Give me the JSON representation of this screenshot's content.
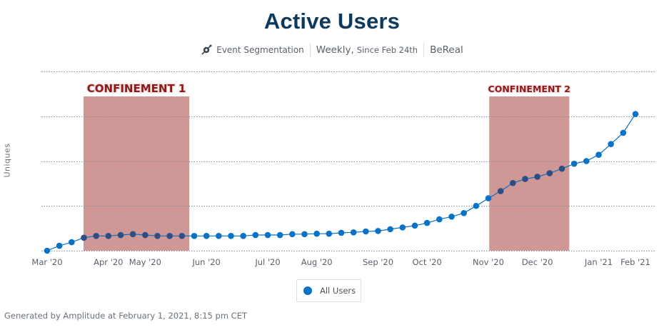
{
  "header": {
    "title": "Active Users",
    "chart_type_label": "Event Segmentation",
    "interval_label": "Weekly,",
    "range_label": "Since Feb 24th",
    "project_label": "BeReal"
  },
  "legend": {
    "items": [
      {
        "label": "All Users",
        "color": "#0a72c6"
      }
    ]
  },
  "footer": {
    "text": "Generated by Amplitude at February 1, 2021, 8:15 pm CET"
  },
  "colors": {
    "series": "#0a72c6",
    "series_in_band": "#2e4d85",
    "band": "#cf9795",
    "band_label": "#8a1a1a",
    "grid": "#8a8f96",
    "title": "#0d3a5c"
  },
  "chart_data": {
    "type": "line",
    "title": "Active Users",
    "xlabel": "",
    "ylabel": "Uniques",
    "y_unit_note": "No y-axis tick values shown; values are relative in gridline-interval units (4 intervals visible)",
    "ylim": [
      0,
      4
    ],
    "grid": true,
    "grid_y_values": [
      0,
      1,
      2,
      3,
      4
    ],
    "legend_position": "bottom-center",
    "x_tick_labels": [
      "Mar '20",
      "Apr '20",
      "May '20",
      "Jun '20",
      "Jul '20",
      "Aug '20",
      "Sep '20",
      "Oct '20",
      "Nov '20",
      "Dec '20",
      "Jan '21",
      "Feb '21"
    ],
    "x_tick_point_index": [
      0,
      5,
      8,
      13,
      18,
      22,
      27,
      31,
      36,
      40,
      45,
      48
    ],
    "series": [
      {
        "name": "All Users",
        "values": [
          0.0,
          0.11,
          0.19,
          0.29,
          0.33,
          0.33,
          0.35,
          0.37,
          0.35,
          0.33,
          0.33,
          0.33,
          0.33,
          0.33,
          0.33,
          0.33,
          0.33,
          0.35,
          0.35,
          0.35,
          0.37,
          0.37,
          0.38,
          0.38,
          0.4,
          0.41,
          0.43,
          0.44,
          0.48,
          0.52,
          0.56,
          0.62,
          0.7,
          0.76,
          0.84,
          1.0,
          1.17,
          1.33,
          1.51,
          1.6,
          1.65,
          1.73,
          1.83,
          1.94,
          2.0,
          2.14,
          2.38,
          2.63,
          3.05
        ]
      }
    ],
    "annotations": [
      {
        "type": "band",
        "label": "CONFINEMENT 1",
        "start_index": 3,
        "end_index": 11.6
      },
      {
        "type": "band",
        "label": "CONFINEMENT 2",
        "start_index": 36.1,
        "end_index": 42.6
      }
    ]
  }
}
